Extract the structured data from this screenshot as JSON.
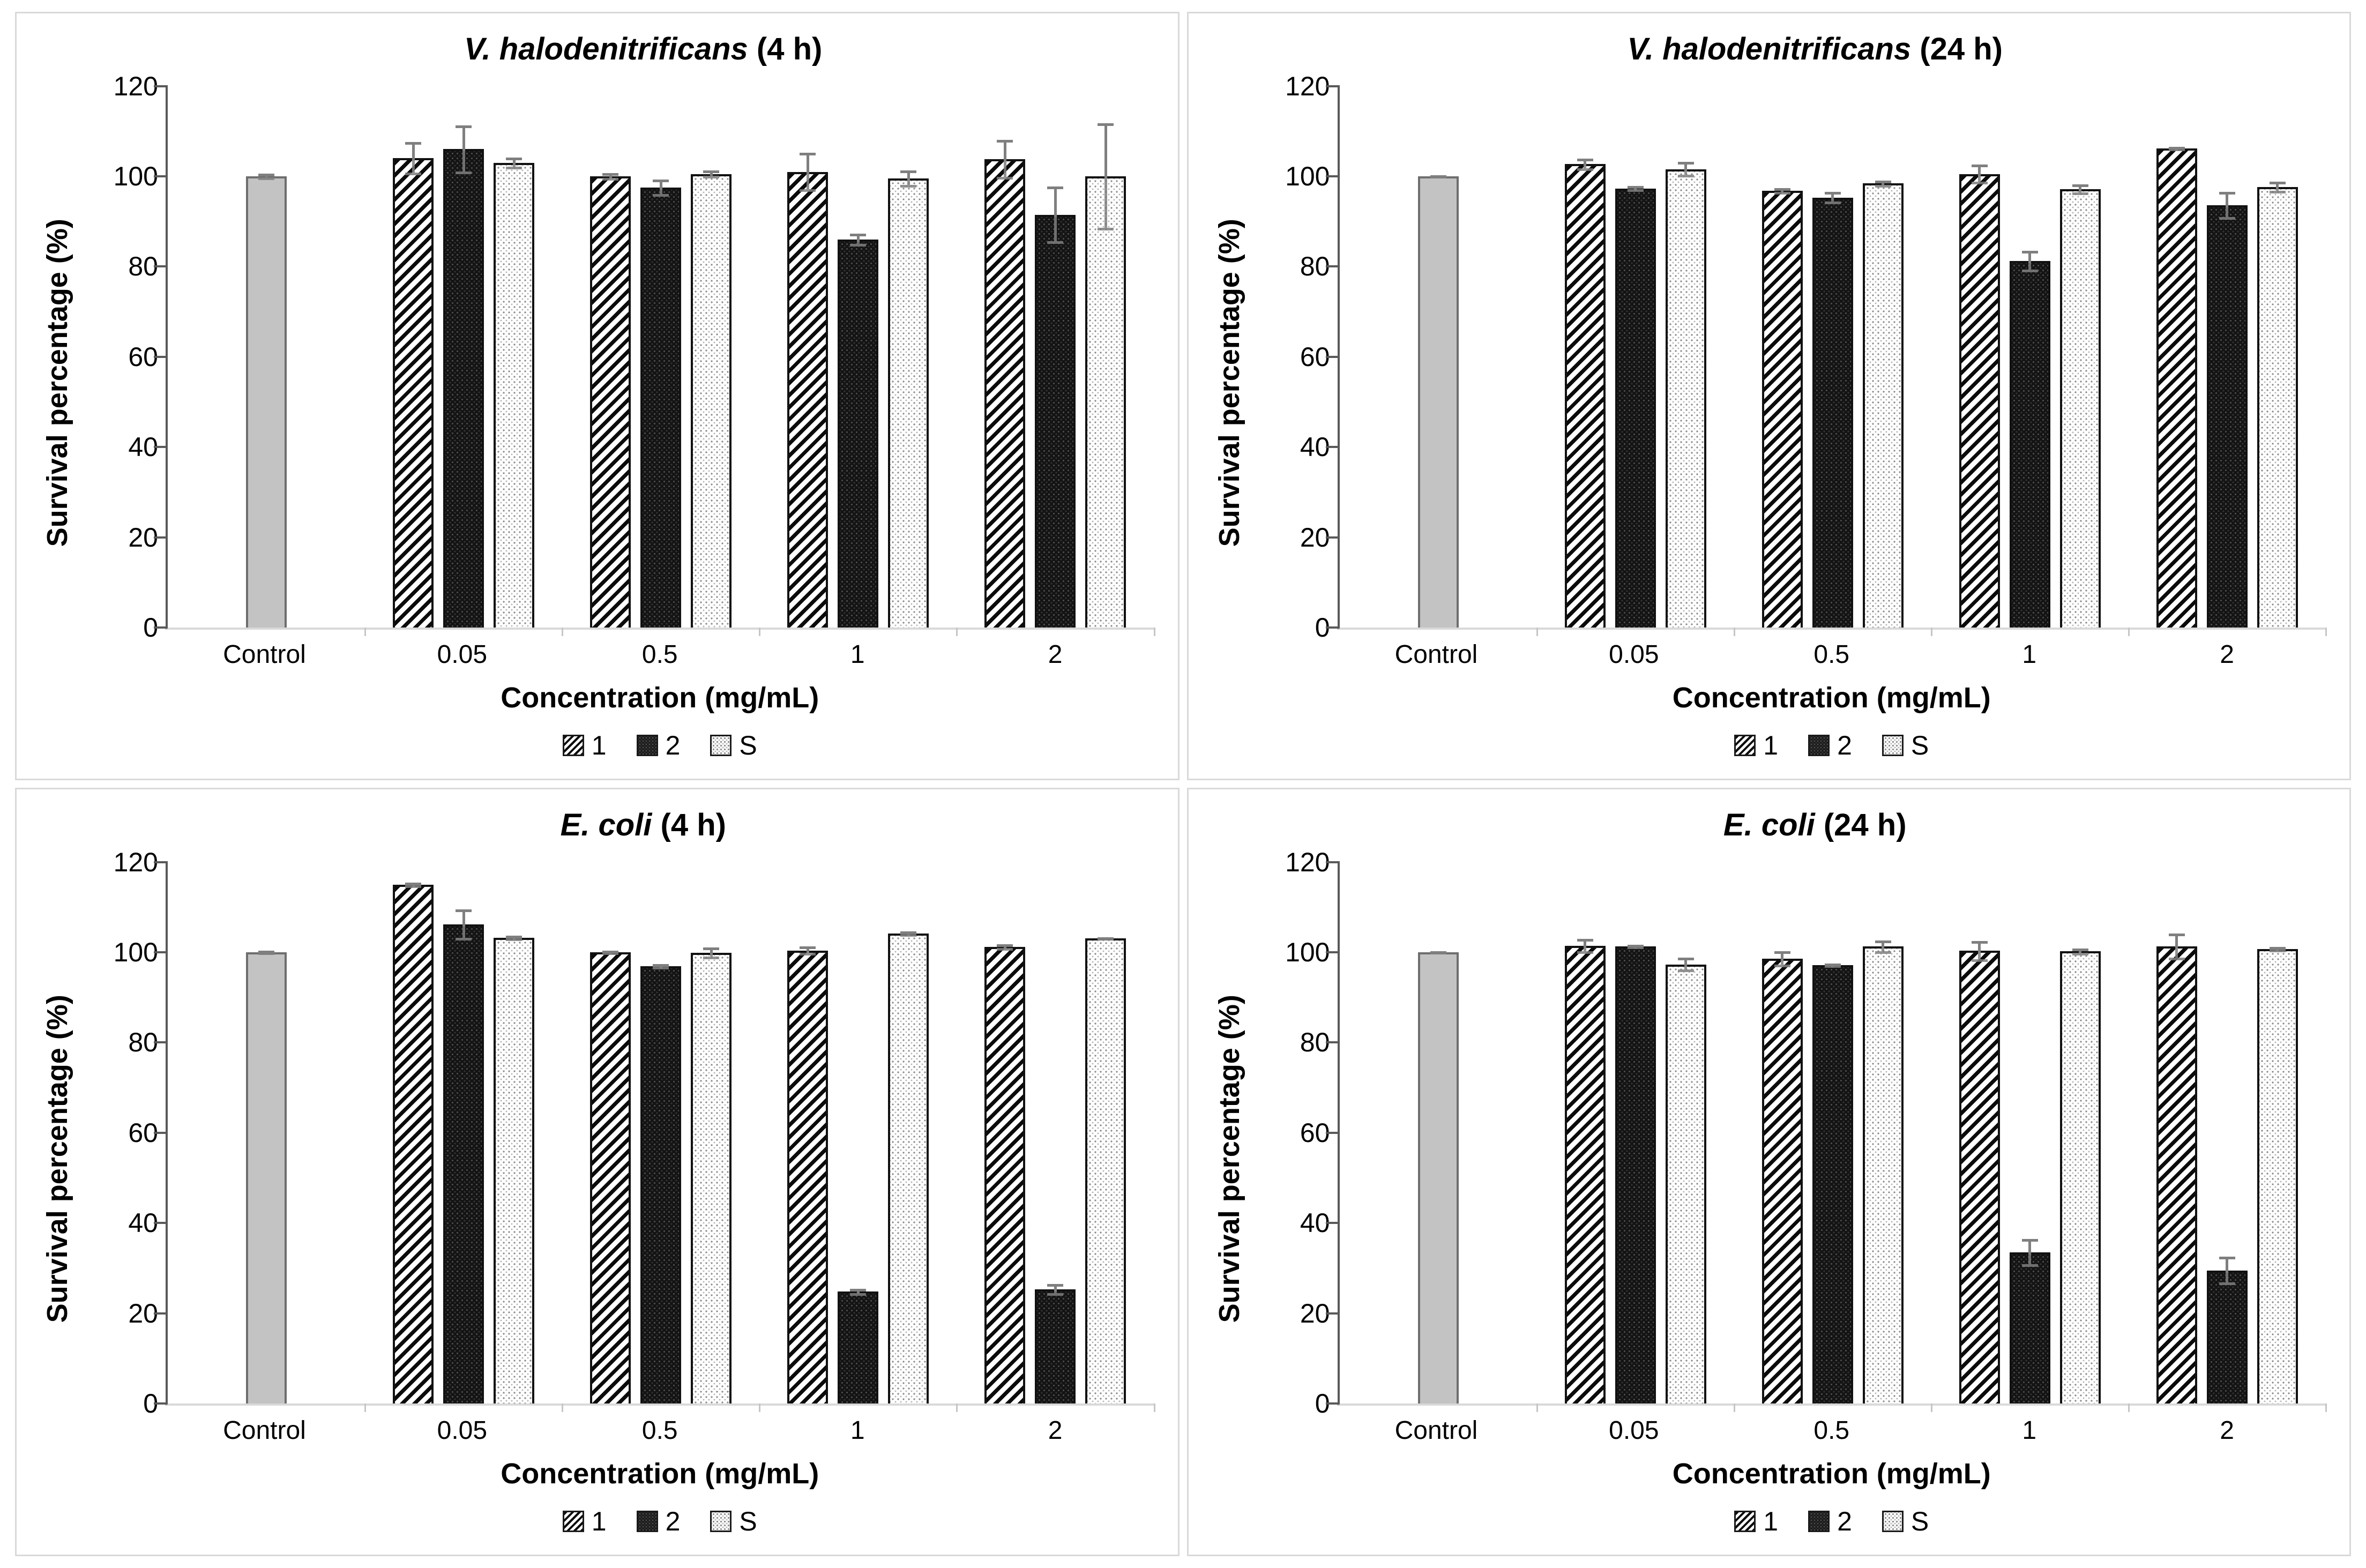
{
  "figure": {
    "background": "#ffffff",
    "panel_border_color": "#d9d9d9",
    "axis_line_dark": "#595959",
    "axis_line_light": "#d9d9d9",
    "error_bar_color": "#7f7f7f",
    "control_fill": "#c3c3c3",
    "series2_fill": "#141414",
    "bar_outline": "#111111"
  },
  "legend": {
    "items": [
      {
        "label": "1",
        "pattern": "diagonal-hatch"
      },
      {
        "label": "2",
        "pattern": "black-dots"
      },
      {
        "label": "S",
        "pattern": "light-dots"
      }
    ]
  },
  "chart_data": [
    {
      "type": "bar",
      "title_italic": "V. halodenitrificans",
      "title_suffix": " (4 h)",
      "ylabel": "Survival percentage (%)",
      "xlabel": "Concentration (mg/mL)",
      "y_axis": {
        "min": 0,
        "max": 120,
        "ticks": [
          0,
          20,
          40,
          60,
          80,
          100,
          120
        ]
      },
      "legend_labels": [
        "1",
        "2",
        "S"
      ],
      "groups": [
        {
          "label": "Control",
          "bars": [
            {
              "series": "control",
              "value": 100,
              "error": 0.8
            }
          ]
        },
        {
          "label": "0.05",
          "bars": [
            {
              "series": "1",
              "value": 104,
              "error": 3.8
            },
            {
              "series": "2",
              "value": 106,
              "error": 5.5
            },
            {
              "series": "S",
              "value": 103,
              "error": 1.4
            }
          ]
        },
        {
          "label": "0.5",
          "bars": [
            {
              "series": "1",
              "value": 100,
              "error": 1.0
            },
            {
              "series": "2",
              "value": 97.5,
              "error": 2.0
            },
            {
              "series": "S",
              "value": 100.5,
              "error": 1.0
            }
          ]
        },
        {
          "label": "1",
          "bars": [
            {
              "series": "1",
              "value": 101,
              "error": 4.5
            },
            {
              "series": "2",
              "value": 86,
              "error": 1.5
            },
            {
              "series": "S",
              "value": 99.5,
              "error": 2.0
            }
          ]
        },
        {
          "label": "2",
          "bars": [
            {
              "series": "1",
              "value": 103.8,
              "error": 4.5
            },
            {
              "series": "2",
              "value": 91.5,
              "error": 6.5
            },
            {
              "series": "S",
              "value": 100,
              "error": 12.0
            }
          ]
        }
      ]
    },
    {
      "type": "bar",
      "title_italic": "V. halodenitrificans",
      "title_suffix": " (24 h)",
      "ylabel": "Survival percentage (%)",
      "xlabel": "Concentration (mg/mL)",
      "y_axis": {
        "min": 0,
        "max": 120,
        "ticks": [
          0,
          20,
          40,
          60,
          80,
          100,
          120
        ]
      },
      "legend_labels": [
        "1",
        "2",
        "S"
      ],
      "groups": [
        {
          "label": "Control",
          "bars": [
            {
              "series": "control",
              "value": 100,
              "error": 0.5
            }
          ]
        },
        {
          "label": "0.05",
          "bars": [
            {
              "series": "1",
              "value": 102.7,
              "error": 1.5
            },
            {
              "series": "2",
              "value": 97.3,
              "error": 0.8
            },
            {
              "series": "S",
              "value": 101.6,
              "error": 1.8
            }
          ]
        },
        {
          "label": "0.5",
          "bars": [
            {
              "series": "1",
              "value": 96.8,
              "error": 0.8
            },
            {
              "series": "2",
              "value": 95.3,
              "error": 1.5
            },
            {
              "series": "S",
              "value": 98.4,
              "error": 0.9
            }
          ]
        },
        {
          "label": "1",
          "bars": [
            {
              "series": "1",
              "value": 100.5,
              "error": 2.3
            },
            {
              "series": "2",
              "value": 81.2,
              "error": 2.5
            },
            {
              "series": "S",
              "value": 97.2,
              "error": 1.3
            }
          ]
        },
        {
          "label": "2",
          "bars": [
            {
              "series": "1",
              "value": 106.2,
              "error": 0.6
            },
            {
              "series": "2",
              "value": 93.6,
              "error": 3.2
            },
            {
              "series": "S",
              "value": 97.6,
              "error": 1.4
            }
          ]
        }
      ]
    },
    {
      "type": "bar",
      "title_italic": "E. coli",
      "title_suffix": " (4 h)",
      "ylabel": "Survival percentage (%)",
      "xlabel": "Concentration (mg/mL)",
      "y_axis": {
        "min": 0,
        "max": 120,
        "ticks": [
          0,
          20,
          40,
          60,
          80,
          100,
          120
        ]
      },
      "legend_labels": [
        "1",
        "2",
        "S"
      ],
      "groups": [
        {
          "label": "Control",
          "bars": [
            {
              "series": "control",
              "value": 100,
              "error": 0.6
            }
          ]
        },
        {
          "label": "0.05",
          "bars": [
            {
              "series": "1",
              "value": 115,
              "error": 0.7
            },
            {
              "series": "2",
              "value": 106.2,
              "error": 3.6
            },
            {
              "series": "S",
              "value": 103.2,
              "error": 0.7
            }
          ]
        },
        {
          "label": "0.5",
          "bars": [
            {
              "series": "1",
              "value": 100,
              "error": 0.6
            },
            {
              "series": "2",
              "value": 96.9,
              "error": 0.7
            },
            {
              "series": "S",
              "value": 99.9,
              "error": 1.4
            }
          ]
        },
        {
          "label": "1",
          "bars": [
            {
              "series": "1",
              "value": 100.4,
              "error": 1.1
            },
            {
              "series": "2",
              "value": 24.8,
              "error": 0.9
            },
            {
              "series": "S",
              "value": 104.2,
              "error": 0.7
            }
          ]
        },
        {
          "label": "2",
          "bars": [
            {
              "series": "1",
              "value": 101.2,
              "error": 0.8
            },
            {
              "series": "2",
              "value": 25.3,
              "error": 1.4
            },
            {
              "series": "S",
              "value": 103.1,
              "error": 0.5
            }
          ]
        }
      ]
    },
    {
      "type": "bar",
      "title_italic": "E. coli",
      "title_suffix": " (24 h)",
      "ylabel": "Survival percentage (%)",
      "xlabel": "Concentration (mg/mL)",
      "y_axis": {
        "min": 0,
        "max": 120,
        "ticks": [
          0,
          20,
          40,
          60,
          80,
          100,
          120
        ]
      },
      "legend_labels": [
        "1",
        "2",
        "S"
      ],
      "groups": [
        {
          "label": "Control",
          "bars": [
            {
              "series": "control",
              "value": 100,
              "error": 0.5
            }
          ]
        },
        {
          "label": "0.05",
          "bars": [
            {
              "series": "1",
              "value": 101.4,
              "error": 1.8
            },
            {
              "series": "2",
              "value": 101.3,
              "error": 0.6
            },
            {
              "series": "S",
              "value": 97.3,
              "error": 1.7
            }
          ]
        },
        {
          "label": "0.5",
          "bars": [
            {
              "series": "1",
              "value": 98.6,
              "error": 1.9
            },
            {
              "series": "2",
              "value": 97.2,
              "error": 0.6
            },
            {
              "series": "S",
              "value": 101.3,
              "error": 1.6
            }
          ]
        },
        {
          "label": "1",
          "bars": [
            {
              "series": "1",
              "value": 100.3,
              "error": 2.4
            },
            {
              "series": "2",
              "value": 33.5,
              "error": 3.2
            },
            {
              "series": "S",
              "value": 100.2,
              "error": 0.9
            }
          ]
        },
        {
          "label": "2",
          "bars": [
            {
              "series": "1",
              "value": 101.3,
              "error": 3.1
            },
            {
              "series": "2",
              "value": 29.5,
              "error": 3.3
            },
            {
              "series": "S",
              "value": 100.7,
              "error": 0.7
            }
          ]
        }
      ]
    }
  ]
}
